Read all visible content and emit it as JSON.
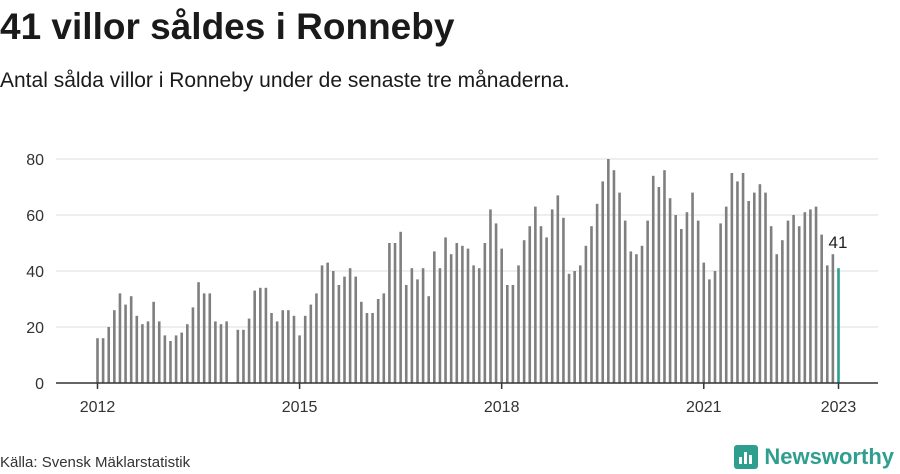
{
  "title": "41 villor såldes i Ronneby",
  "subtitle": "Antal sålda villor i Ronneby under de senaste tre månaderna.",
  "source": "Källa: Svensk Mäklarstatistik",
  "brand": "Newsworthy",
  "colors": {
    "bar": "#7f7f7f",
    "highlight": "#2e9e8f",
    "grid": "#dddddd",
    "axis": "#333333",
    "brand": "#2e9e8f"
  },
  "chart_data": {
    "type": "bar",
    "title": "41 villor såldes i Ronneby",
    "subtitle": "Antal sålda villor i Ronneby under de senaste tre månaderna.",
    "xlabel": "",
    "ylabel": "",
    "ylim": [
      0,
      85
    ],
    "yticks": [
      0,
      20,
      40,
      60,
      80
    ],
    "xticks": [
      "2012",
      "2015",
      "2018",
      "2021",
      "2023"
    ],
    "grid": true,
    "first_period": "2012-01",
    "last_period": "2023-01",
    "highlight_label": "41",
    "series": [
      {
        "values": [
          16,
          16,
          20,
          26,
          32,
          28,
          31,
          24,
          21,
          22,
          29,
          22,
          17,
          15,
          17,
          18,
          21,
          27,
          36,
          32,
          32,
          22,
          21,
          22,
          null,
          19,
          19,
          23,
          33,
          34,
          34,
          25,
          22,
          26,
          26,
          24,
          17,
          24,
          28,
          32,
          42,
          43,
          40,
          35,
          38,
          41,
          38,
          29,
          25,
          25,
          30,
          32,
          50,
          50,
          54,
          35,
          41,
          37,
          41,
          31,
          47,
          41,
          52,
          46,
          50,
          49,
          48,
          42,
          41,
          50,
          62,
          57,
          48,
          35,
          35,
          42,
          51,
          56,
          63,
          56,
          52,
          62,
          67,
          59,
          39,
          40,
          42,
          49,
          56,
          64,
          72,
          80,
          76,
          68,
          58,
          47,
          46,
          49,
          58,
          74,
          70,
          76,
          66,
          60,
          55,
          61,
          68,
          58,
          43,
          37,
          40,
          57,
          63,
          75,
          72,
          75,
          65,
          68,
          71,
          68,
          56,
          46,
          51,
          58,
          60,
          56,
          61,
          62,
          63,
          53,
          42,
          46,
          41
        ]
      }
    ]
  }
}
